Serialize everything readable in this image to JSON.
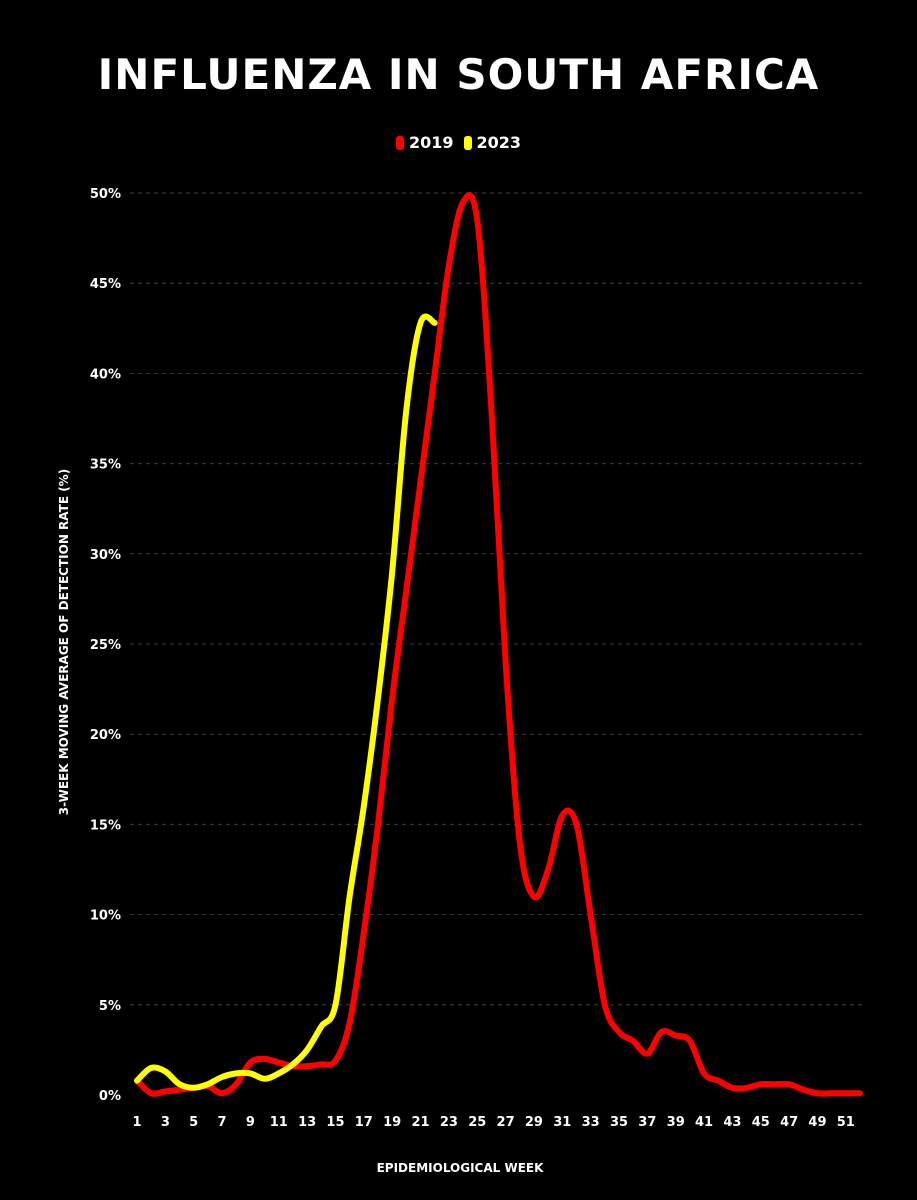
{
  "chart_data": {
    "type": "line",
    "title": "INFLUENZA IN SOUTH AFRICA",
    "xlabel": "EPIDEMIOLOGICAL WEEK",
    "ylabel": "3-WEEK MOVING AVERAGE OF DETECTION RATE (%)",
    "xlim": [
      1,
      52
    ],
    "ylim": [
      0,
      50
    ],
    "x_ticks": [
      1,
      3,
      5,
      7,
      9,
      11,
      13,
      15,
      17,
      19,
      21,
      23,
      25,
      27,
      29,
      31,
      33,
      35,
      37,
      39,
      41,
      43,
      45,
      47,
      49,
      51
    ],
    "y_ticks": [
      0,
      5,
      10,
      15,
      20,
      25,
      30,
      35,
      40,
      45,
      50
    ],
    "y_tick_labels": [
      "0%",
      "5%",
      "10%",
      "15%",
      "20%",
      "25%",
      "30%",
      "35%",
      "40%",
      "45%",
      "50%"
    ],
    "grid": "horizontal dashed",
    "legend_position": "top-center",
    "series": [
      {
        "name": "2019",
        "color": "#ff0000",
        "x": [
          1,
          2,
          3,
          4,
          5,
          6,
          7,
          8,
          9,
          10,
          11,
          12,
          13,
          14,
          15,
          16,
          17,
          18,
          19,
          20,
          21,
          22,
          23,
          24,
          25,
          26,
          27,
          28,
          29,
          30,
          31,
          32,
          33,
          34,
          35,
          36,
          37,
          38,
          39,
          40,
          41,
          42,
          43,
          44,
          45,
          46,
          47,
          48,
          49,
          50,
          51,
          52
        ],
        "y": [
          0.8,
          0.1,
          0.2,
          0.3,
          0.4,
          0.5,
          0.1,
          0.6,
          1.8,
          2.0,
          1.8,
          1.6,
          1.6,
          1.7,
          1.9,
          4.0,
          9.0,
          15.0,
          22.0,
          28.0,
          34.0,
          40.0,
          46.0,
          49.5,
          48.5,
          38.0,
          24.0,
          14.0,
          11.0,
          12.5,
          15.5,
          15.0,
          10.0,
          5.0,
          3.5,
          3.0,
          2.3,
          3.5,
          3.3,
          3.0,
          1.2,
          0.8,
          0.4,
          0.4,
          0.6,
          0.6,
          0.6,
          0.3,
          0.1,
          0.1,
          0.1,
          0.1
        ]
      },
      {
        "name": "2023",
        "color": "#ffff00",
        "x": [
          1,
          2,
          3,
          4,
          5,
          6,
          7,
          8,
          9,
          10,
          11,
          12,
          13,
          14,
          15,
          16,
          17,
          18,
          19,
          20,
          21,
          22
        ],
        "y": [
          0.8,
          1.5,
          1.3,
          0.6,
          0.4,
          0.6,
          1.0,
          1.2,
          1.2,
          0.9,
          1.2,
          1.7,
          2.5,
          3.8,
          5.0,
          11.0,
          16.0,
          22.0,
          29.0,
          38.0,
          42.8,
          42.8
        ]
      }
    ]
  }
}
